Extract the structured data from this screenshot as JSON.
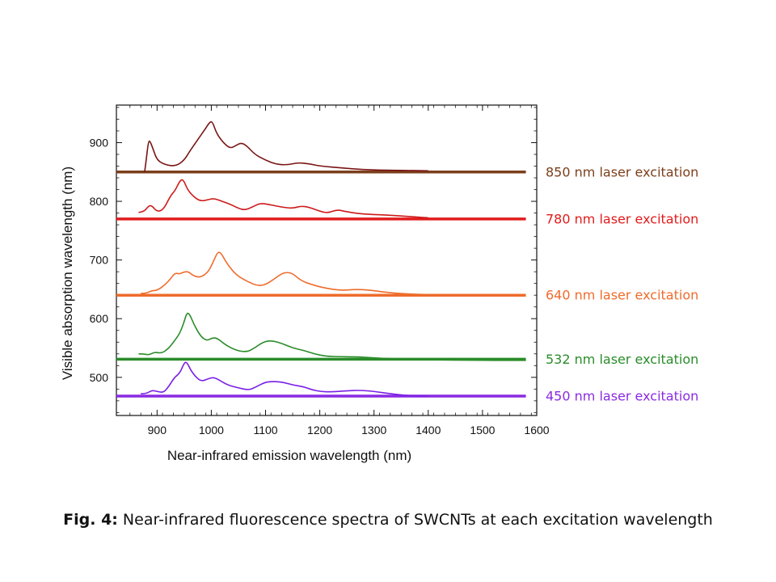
{
  "caption": {
    "label": "Fig. 4:",
    "text": " Near-infrared fluorescence spectra of SWCNTs at each excitation wavelength"
  },
  "chart_data": {
    "type": "line",
    "xlabel": "Near-infrared  emission wavelength  (nm)",
    "ylabel": "Visible  absorption wavelength  (nm)",
    "xlim": [
      825,
      1600
    ],
    "ylim": [
      435,
      964
    ],
    "xticks": [
      900,
      1000,
      1100,
      1200,
      1300,
      1400,
      1500,
      1600
    ],
    "yticks": [
      500,
      600,
      700,
      800,
      900
    ],
    "grid": false,
    "series": [
      {
        "name": "850 nm laser excitation",
        "color": "#7b3f1b",
        "spectrum_color": "#7a1414",
        "baseline": 850,
        "baseline_x": [
          825,
          1580
        ],
        "spectrum": [
          [
            877,
            850
          ],
          [
            880,
            870
          ],
          [
            884,
            902
          ],
          [
            887,
            903
          ],
          [
            893,
            888
          ],
          [
            900,
            870
          ],
          [
            915,
            862
          ],
          [
            935,
            860
          ],
          [
            950,
            870
          ],
          [
            960,
            885
          ],
          [
            975,
            905
          ],
          [
            990,
            925
          ],
          [
            997,
            935
          ],
          [
            1002,
            936
          ],
          [
            1010,
            915
          ],
          [
            1022,
            900
          ],
          [
            1035,
            890
          ],
          [
            1045,
            895
          ],
          [
            1055,
            900
          ],
          [
            1065,
            895
          ],
          [
            1080,
            880
          ],
          [
            1100,
            870
          ],
          [
            1120,
            863
          ],
          [
            1140,
            862
          ],
          [
            1160,
            866
          ],
          [
            1180,
            864
          ],
          [
            1200,
            860
          ],
          [
            1240,
            857
          ],
          [
            1280,
            854
          ],
          [
            1320,
            853
          ],
          [
            1400,
            852
          ]
        ]
      },
      {
        "name": "780 nm laser excitation",
        "color": "#e21b1b",
        "spectrum_color": "#cc1a1a",
        "baseline": 770,
        "baseline_x": [
          825,
          1580
        ],
        "spectrum": [
          [
            866,
            781
          ],
          [
            876,
            782
          ],
          [
            884,
            792
          ],
          [
            890,
            793
          ],
          [
            900,
            782
          ],
          [
            912,
            786
          ],
          [
            925,
            810
          ],
          [
            933,
            818
          ],
          [
            942,
            835
          ],
          [
            948,
            838
          ],
          [
            956,
            820
          ],
          [
            967,
            808
          ],
          [
            980,
            800
          ],
          [
            995,
            803
          ],
          [
            1005,
            805
          ],
          [
            1020,
            800
          ],
          [
            1035,
            795
          ],
          [
            1050,
            788
          ],
          [
            1062,
            785
          ],
          [
            1075,
            790
          ],
          [
            1090,
            797
          ],
          [
            1110,
            794
          ],
          [
            1130,
            790
          ],
          [
            1150,
            788
          ],
          [
            1165,
            792
          ],
          [
            1180,
            790
          ],
          [
            1200,
            783
          ],
          [
            1215,
            780
          ],
          [
            1232,
            786
          ],
          [
            1250,
            782
          ],
          [
            1280,
            778
          ],
          [
            1320,
            777
          ],
          [
            1380,
            773
          ],
          [
            1400,
            772
          ]
        ]
      },
      {
        "name": "640 nm laser excitation",
        "color": "#ee6c2c",
        "spectrum_color": "#ee6c2c",
        "baseline": 640,
        "baseline_x": [
          825,
          1580
        ],
        "spectrum": [
          [
            870,
            643
          ],
          [
            880,
            643
          ],
          [
            890,
            648
          ],
          [
            900,
            648
          ],
          [
            915,
            658
          ],
          [
            925,
            668
          ],
          [
            933,
            678
          ],
          [
            942,
            676
          ],
          [
            950,
            680
          ],
          [
            958,
            680
          ],
          [
            967,
            673
          ],
          [
            980,
            670
          ],
          [
            995,
            680
          ],
          [
            1005,
            700
          ],
          [
            1012,
            714
          ],
          [
            1018,
            712
          ],
          [
            1028,
            695
          ],
          [
            1045,
            675
          ],
          [
            1065,
            664
          ],
          [
            1085,
            656
          ],
          [
            1100,
            658
          ],
          [
            1115,
            667
          ],
          [
            1130,
            677
          ],
          [
            1140,
            679
          ],
          [
            1150,
            677
          ],
          [
            1165,
            665
          ],
          [
            1185,
            658
          ],
          [
            1210,
            652
          ],
          [
            1240,
            648
          ],
          [
            1265,
            650
          ],
          [
            1290,
            649
          ],
          [
            1320,
            645
          ],
          [
            1360,
            642
          ],
          [
            1400,
            641
          ]
        ]
      },
      {
        "name": "532 nm laser excitation",
        "color": "#2a8c2a",
        "spectrum_color": "#2a8c2a",
        "baseline": 531,
        "baseline_x": [
          825,
          1580
        ],
        "spectrum": [
          [
            866,
            540
          ],
          [
            875,
            540
          ],
          [
            885,
            538
          ],
          [
            895,
            543
          ],
          [
            908,
            541
          ],
          [
            920,
            548
          ],
          [
            932,
            562
          ],
          [
            942,
            575
          ],
          [
            950,
            595
          ],
          [
            955,
            610
          ],
          [
            960,
            608
          ],
          [
            968,
            590
          ],
          [
            980,
            570
          ],
          [
            992,
            562
          ],
          [
            1003,
            568
          ],
          [
            1012,
            566
          ],
          [
            1025,
            556
          ],
          [
            1045,
            546
          ],
          [
            1065,
            543
          ],
          [
            1080,
            550
          ],
          [
            1095,
            560
          ],
          [
            1110,
            563
          ],
          [
            1130,
            558
          ],
          [
            1150,
            550
          ],
          [
            1170,
            546
          ],
          [
            1190,
            540
          ],
          [
            1210,
            536
          ],
          [
            1240,
            535
          ],
          [
            1270,
            535
          ],
          [
            1300,
            533
          ],
          [
            1350,
            531
          ],
          [
            1400,
            530
          ],
          [
            1500,
            529
          ],
          [
            1580,
            529
          ]
        ]
      },
      {
        "name": "450 nm laser excitation",
        "color": "#8a2be2",
        "spectrum_color": "#7a1ee6",
        "baseline": 468,
        "baseline_x": [
          825,
          1580
        ],
        "spectrum": [
          [
            870,
            472
          ],
          [
            880,
            472
          ],
          [
            890,
            478
          ],
          [
            900,
            476
          ],
          [
            912,
            474
          ],
          [
            922,
            485
          ],
          [
            932,
            500
          ],
          [
            942,
            507
          ],
          [
            950,
            525
          ],
          [
            955,
            526
          ],
          [
            962,
            512
          ],
          [
            972,
            500
          ],
          [
            982,
            493
          ],
          [
            995,
            498
          ],
          [
            1005,
            500
          ],
          [
            1015,
            495
          ],
          [
            1030,
            487
          ],
          [
            1050,
            482
          ],
          [
            1070,
            478
          ],
          [
            1085,
            485
          ],
          [
            1100,
            492
          ],
          [
            1115,
            493
          ],
          [
            1130,
            492
          ],
          [
            1150,
            487
          ],
          [
            1170,
            484
          ],
          [
            1185,
            479
          ],
          [
            1200,
            476
          ],
          [
            1220,
            475
          ],
          [
            1250,
            477
          ],
          [
            1275,
            478
          ],
          [
            1300,
            476
          ],
          [
            1330,
            472
          ],
          [
            1360,
            469
          ],
          [
            1400,
            468
          ]
        ]
      }
    ]
  }
}
